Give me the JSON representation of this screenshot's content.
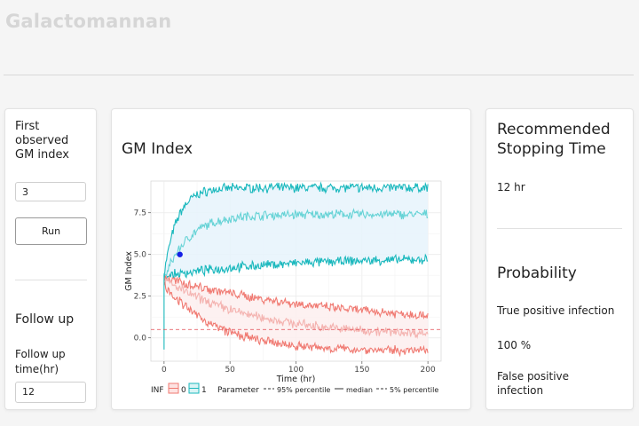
{
  "app": {
    "title": "Galactomannan"
  },
  "left_panel": {
    "first_label": "First observed GM index",
    "first_value": "3",
    "run_label": "Run",
    "follow_up_heading": "Follow up",
    "follow_up_label": "Follow up time(hr)",
    "follow_up_value": "12"
  },
  "center_panel": {
    "heading": "GM Index"
  },
  "right_panel": {
    "stopping_heading": "Recommended Stopping Time",
    "stopping_value": "12 hr",
    "probability_heading": "Probability",
    "true_positive_label": "True positive infection",
    "true_positive_value": "100 %",
    "false_positive_label": "False positive infection"
  },
  "chart_data": {
    "type": "line",
    "xlabel": "Time (hr)",
    "ylabel": "GM Index",
    "xlim": [
      -10,
      210
    ],
    "ylim": [
      -1.4,
      9.4
    ],
    "x_ticks": [
      0,
      50,
      100,
      150,
      200
    ],
    "y_ticks": [
      0.0,
      2.5,
      5.0,
      7.5
    ],
    "x_tick_labels": [
      "0",
      "50",
      "100",
      "150",
      "200"
    ],
    "y_tick_labels": [
      "0.0",
      "2.5",
      "5.0",
      "7.5"
    ],
    "grid": true,
    "legend_position": "bottom",
    "legend": {
      "inf_title": "INF",
      "inf_items": [
        "0",
        "1"
      ],
      "param_title": "Parameter",
      "param_items": [
        "95% percentile",
        "median",
        "5% percentile"
      ]
    },
    "threshold": 0.5,
    "observed_point": {
      "x": 12,
      "y": 5.0
    },
    "series": [
      {
        "inf": "1",
        "parameter": "95% percentile",
        "start": 3.8,
        "end": 9.0,
        "rate": 0.1
      },
      {
        "inf": "1",
        "parameter": "median",
        "start": 3.5,
        "end": 7.4,
        "rate": 0.055
      },
      {
        "inf": "1",
        "parameter": "5% percentile",
        "start": 3.7,
        "end": 4.8,
        "rate": 0.012
      },
      {
        "inf": "0",
        "parameter": "95% percentile",
        "start": 3.6,
        "end": 0.8,
        "rate": 0.008
      },
      {
        "inf": "0",
        "parameter": "median",
        "start": 3.5,
        "end": 0.1,
        "rate": 0.015
      },
      {
        "inf": "0",
        "parameter": "5% percentile",
        "start": 3.2,
        "end": -0.8,
        "rate": 0.025
      }
    ],
    "colors": {
      "inf0": "#f07a72",
      "inf0_light": "#f4b3b0",
      "inf1": "#1ab8bd",
      "inf1_light": "#67d3d6",
      "point": "#1520e6",
      "threshold": "#e2474f"
    }
  }
}
